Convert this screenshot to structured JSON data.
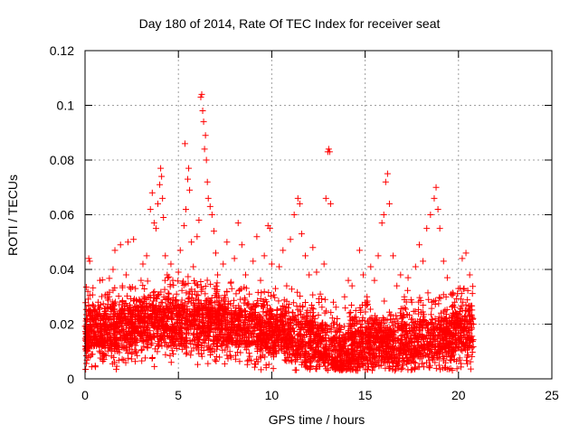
{
  "chart_data": {
    "type": "scatter",
    "title": "Day 180 of 2014, Rate Of TEC Index for receiver seat",
    "xlabel": "GPS time / hours",
    "ylabel": "ROTI / TECUs",
    "xlim": [
      0,
      25
    ],
    "ylim": [
      0,
      0.12
    ],
    "xticks": [
      0,
      5,
      10,
      15,
      20,
      25
    ],
    "xtick_labels": [
      "0",
      "5",
      "10",
      "15",
      "20",
      "25"
    ],
    "yticks": [
      0,
      0.02,
      0.04,
      0.06,
      0.08,
      0.1,
      0.12
    ],
    "ytick_labels": [
      "0",
      "0.02",
      "0.04",
      "0.06",
      "0.08",
      "0.1",
      "0.12"
    ],
    "grid": true,
    "marker": "+",
    "color": "#ff0000",
    "data_extent_hours": [
      0,
      20.8
    ],
    "series": [
      {
        "name": "ROTI",
        "points": [
          [
            0.05,
            0.011
          ],
          [
            0.1,
            0.018
          ],
          [
            0.15,
            0.032
          ],
          [
            0.2,
            0.044
          ],
          [
            0.25,
            0.043
          ],
          [
            0.3,
            0.025
          ],
          [
            0.35,
            0.014
          ],
          [
            0.4,
            0.009
          ],
          [
            0.5,
            0.015
          ],
          [
            0.6,
            0.022
          ],
          [
            0.7,
            0.028
          ],
          [
            0.8,
            0.036
          ],
          [
            0.9,
            0.019
          ],
          [
            1.0,
            0.012
          ],
          [
            1.1,
            0.024
          ],
          [
            1.2,
            0.031
          ],
          [
            1.3,
            0.018
          ],
          [
            1.4,
            0.026
          ],
          [
            1.5,
            0.04
          ],
          [
            1.6,
            0.047
          ],
          [
            1.7,
            0.021
          ],
          [
            1.8,
            0.013
          ],
          [
            1.9,
            0.049
          ],
          [
            2.0,
            0.034
          ],
          [
            2.1,
            0.016
          ],
          [
            2.2,
            0.038
          ],
          [
            2.3,
            0.05
          ],
          [
            2.4,
            0.027
          ],
          [
            2.5,
            0.019
          ],
          [
            2.6,
            0.051
          ],
          [
            2.7,
            0.033
          ],
          [
            2.8,
            0.014
          ],
          [
            2.9,
            0.029
          ],
          [
            3.0,
            0.036
          ],
          [
            3.1,
            0.042
          ],
          [
            3.2,
            0.021
          ],
          [
            3.3,
            0.045
          ],
          [
            3.4,
            0.03
          ],
          [
            3.5,
            0.062
          ],
          [
            3.6,
            0.068
          ],
          [
            3.7,
            0.057
          ],
          [
            3.8,
            0.055
          ],
          [
            3.9,
            0.064
          ],
          [
            4.0,
            0.071
          ],
          [
            4.05,
            0.077
          ],
          [
            4.1,
            0.074
          ],
          [
            4.15,
            0.066
          ],
          [
            4.2,
            0.059
          ],
          [
            4.3,
            0.045
          ],
          [
            4.4,
            0.038
          ],
          [
            4.5,
            0.029
          ],
          [
            4.6,
            0.042
          ],
          [
            4.7,
            0.036
          ],
          [
            4.8,
            0.026
          ],
          [
            4.9,
            0.031
          ],
          [
            5.0,
            0.039
          ],
          [
            5.1,
            0.047
          ],
          [
            5.2,
            0.035
          ],
          [
            5.3,
            0.056
          ],
          [
            5.35,
            0.086
          ],
          [
            5.4,
            0.062
          ],
          [
            5.5,
            0.073
          ],
          [
            5.55,
            0.077
          ],
          [
            5.6,
            0.069
          ],
          [
            5.7,
            0.05
          ],
          [
            5.8,
            0.041
          ],
          [
            5.9,
            0.035
          ],
          [
            6.0,
            0.052
          ],
          [
            6.1,
            0.058
          ],
          [
            6.2,
            0.103
          ],
          [
            6.25,
            0.104
          ],
          [
            6.3,
            0.098
          ],
          [
            6.35,
            0.094
          ],
          [
            6.4,
            0.084
          ],
          [
            6.45,
            0.089
          ],
          [
            6.5,
            0.08
          ],
          [
            6.55,
            0.072
          ],
          [
            6.6,
            0.066
          ],
          [
            6.7,
            0.063
          ],
          [
            6.8,
            0.06
          ],
          [
            6.9,
            0.054
          ],
          [
            7.0,
            0.046
          ],
          [
            7.1,
            0.038
          ],
          [
            7.2,
            0.027
          ],
          [
            7.4,
            0.042
          ],
          [
            7.6,
            0.05
          ],
          [
            7.8,
            0.035
          ],
          [
            8.0,
            0.044
          ],
          [
            8.2,
            0.057
          ],
          [
            8.4,
            0.049
          ],
          [
            8.6,
            0.038
          ],
          [
            8.8,
            0.031
          ],
          [
            9.0,
            0.043
          ],
          [
            9.2,
            0.052
          ],
          [
            9.4,
            0.036
          ],
          [
            9.6,
            0.045
          ],
          [
            9.8,
            0.056
          ],
          [
            9.9,
            0.055
          ],
          [
            10.0,
            0.042
          ],
          [
            10.2,
            0.033
          ],
          [
            10.4,
            0.041
          ],
          [
            10.6,
            0.047
          ],
          [
            10.8,
            0.034
          ],
          [
            11.0,
            0.051
          ],
          [
            11.2,
            0.06
          ],
          [
            11.4,
            0.066
          ],
          [
            11.5,
            0.064
          ],
          [
            11.6,
            0.053
          ],
          [
            11.8,
            0.045
          ],
          [
            12.0,
            0.038
          ],
          [
            12.2,
            0.048
          ],
          [
            12.4,
            0.039
          ],
          [
            12.6,
            0.031
          ],
          [
            12.8,
            0.042
          ],
          [
            12.9,
            0.066
          ],
          [
            13.0,
            0.083
          ],
          [
            13.05,
            0.084
          ],
          [
            13.1,
            0.083
          ],
          [
            13.15,
            0.064
          ],
          [
            13.3,
            0.028
          ],
          [
            13.5,
            0.022
          ],
          [
            13.7,
            0.018
          ],
          [
            13.9,
            0.03
          ],
          [
            14.1,
            0.036
          ],
          [
            14.3,
            0.034
          ],
          [
            14.5,
            0.025
          ],
          [
            14.7,
            0.047
          ],
          [
            14.9,
            0.038
          ],
          [
            15.1,
            0.03
          ],
          [
            15.3,
            0.041
          ],
          [
            15.5,
            0.036
          ],
          [
            15.7,
            0.045
          ],
          [
            15.9,
            0.057
          ],
          [
            16.0,
            0.06
          ],
          [
            16.1,
            0.072
          ],
          [
            16.2,
            0.075
          ],
          [
            16.3,
            0.064
          ],
          [
            16.5,
            0.045
          ],
          [
            16.7,
            0.034
          ],
          [
            16.9,
            0.038
          ],
          [
            17.1,
            0.03
          ],
          [
            17.3,
            0.037
          ],
          [
            17.5,
            0.028
          ],
          [
            17.7,
            0.041
          ],
          [
            17.9,
            0.049
          ],
          [
            18.1,
            0.043
          ],
          [
            18.3,
            0.055
          ],
          [
            18.5,
            0.06
          ],
          [
            18.7,
            0.066
          ],
          [
            18.8,
            0.07
          ],
          [
            18.9,
            0.062
          ],
          [
            19.0,
            0.055
          ],
          [
            19.2,
            0.043
          ],
          [
            19.4,
            0.037
          ],
          [
            19.6,
            0.031
          ],
          [
            19.8,
            0.028
          ],
          [
            20.0,
            0.033
          ],
          [
            20.2,
            0.044
          ],
          [
            20.4,
            0.046
          ],
          [
            20.6,
            0.038
          ],
          [
            20.8,
            0.02
          ]
        ]
      }
    ]
  }
}
